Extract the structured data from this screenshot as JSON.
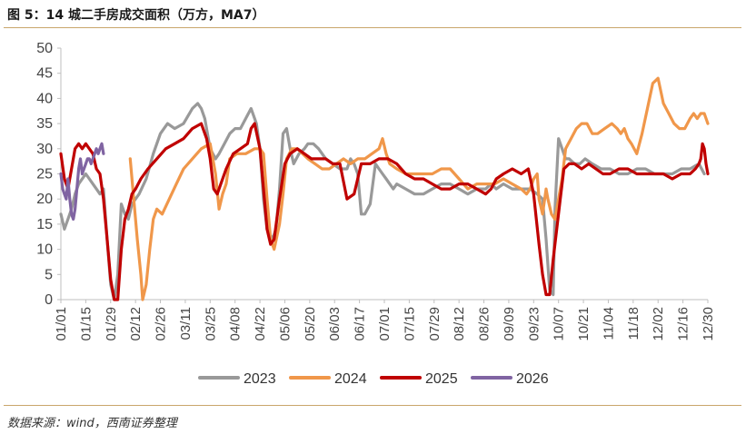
{
  "header": {
    "title": "图 5：14 城二手房成交面积（万方，MA7）"
  },
  "footer": {
    "source": "数据来源：wind，西南证券整理"
  },
  "colors": {
    "s2023": "#999999",
    "s2024": "#f0974a",
    "s2025": "#c00000",
    "s2026": "#8064a2",
    "rule": "#c9a66b"
  },
  "chart_data": {
    "type": "line",
    "title": "14 城二手房成交面积（万方，MA7）",
    "xlabel": "",
    "ylabel": "",
    "ylim": [
      0,
      50
    ],
    "yticks": [
      "0",
      "5",
      "10",
      "15",
      "20",
      "25",
      "30",
      "35",
      "40",
      "45",
      "50"
    ],
    "xlim": [
      1,
      365
    ],
    "x_tick_positions": [
      1,
      15,
      29,
      43,
      57,
      71,
      85,
      99,
      113,
      127,
      141,
      155,
      169,
      183,
      197,
      211,
      225,
      239,
      253,
      267,
      281,
      295,
      309,
      323,
      337,
      351,
      365
    ],
    "x_tick_labels": [
      "01/01",
      "01/15",
      "01/29",
      "02/12",
      "02/26",
      "03/11",
      "03/25",
      "04/08",
      "04/22",
      "05/06",
      "05/20",
      "06/03",
      "06/17",
      "07/01",
      "07/15",
      "07/29",
      "08/12",
      "08/26",
      "09/09",
      "09/23",
      "10/07",
      "10/21",
      "11/04",
      "11/18",
      "12/02",
      "12/16",
      "12/30"
    ],
    "legend_position": "bottom",
    "grid": false,
    "series": [
      {
        "name": "2023",
        "color": "#999999",
        "x": [
          1,
          3,
          5,
          7,
          9,
          11,
          13,
          15,
          17,
          19,
          21,
          23,
          25,
          27,
          29,
          31,
          33,
          35,
          37,
          39,
          41,
          45,
          49,
          53,
          57,
          61,
          65,
          70,
          75,
          78,
          80,
          82,
          85,
          88,
          90,
          93,
          96,
          99,
          102,
          105,
          108,
          111,
          113,
          115,
          117,
          120,
          122,
          124,
          126,
          128,
          130,
          132,
          135,
          138,
          140,
          143,
          146,
          150,
          154,
          158,
          162,
          164,
          166,
          168,
          170,
          172,
          175,
          178,
          180,
          182,
          184,
          186,
          188,
          190,
          195,
          200,
          205,
          210,
          215,
          220,
          225,
          230,
          235,
          240,
          243,
          246,
          250,
          255,
          260,
          265,
          269,
          272,
          274,
          276,
          278,
          279,
          281,
          283,
          285,
          287,
          290,
          293,
          296,
          300,
          305,
          310,
          315,
          320,
          325,
          330,
          335,
          340,
          345,
          350,
          355,
          360,
          363
        ],
        "y": [
          17,
          14,
          16,
          18,
          21,
          23,
          24,
          25,
          24,
          23,
          22,
          21,
          22,
          12,
          3,
          0,
          5,
          19,
          17,
          16,
          19,
          21,
          24,
          29,
          33,
          35,
          34,
          35,
          38,
          39,
          38,
          36,
          30,
          28,
          29,
          31,
          33,
          34,
          34,
          36,
          38,
          35,
          30,
          20,
          14,
          12,
          14,
          22,
          33,
          34,
          30,
          27,
          29,
          30,
          31,
          31,
          30,
          28,
          27,
          26,
          26,
          28,
          27,
          25,
          17,
          17,
          19,
          27,
          26,
          25,
          24,
          23,
          22,
          23,
          22,
          21,
          21,
          22,
          23,
          23,
          22,
          21,
          22,
          22,
          23,
          22,
          23,
          22,
          22,
          22,
          21,
          20,
          12,
          2,
          1,
          18,
          32,
          30,
          28,
          28,
          27,
          27,
          28,
          27,
          26,
          26,
          25,
          25,
          26,
          26,
          25,
          25,
          25,
          26,
          26,
          27,
          25
        ]
      },
      {
        "name": "2024",
        "color": "#f0974a",
        "x": [
          40,
          42,
          44,
          46,
          47,
          49,
          51,
          53,
          55,
          58,
          62,
          66,
          70,
          75,
          80,
          85,
          88,
          90,
          92,
          94,
          96,
          100,
          105,
          110,
          113,
          115,
          117,
          119,
          121,
          124,
          126,
          128,
          131,
          134,
          137,
          140,
          144,
          148,
          152,
          156,
          160,
          164,
          168,
          172,
          176,
          180,
          182,
          184,
          186,
          190,
          195,
          200,
          205,
          210,
          215,
          220,
          225,
          230,
          235,
          240,
          245,
          250,
          255,
          260,
          263,
          265,
          267,
          269,
          270,
          272,
          274,
          275,
          277,
          279,
          281,
          283,
          285,
          288,
          291,
          294,
          297,
          300,
          303,
          307,
          311,
          314,
          316,
          318,
          320,
          322,
          325,
          328,
          331,
          334,
          337,
          340,
          343,
          346,
          349,
          352,
          355,
          357,
          359,
          361,
          363,
          365
        ],
        "y": [
          28,
          20,
          12,
          5,
          0,
          3,
          10,
          16,
          18,
          17,
          20,
          23,
          26,
          28,
          30,
          31,
          25,
          18,
          21,
          23,
          28,
          29,
          29,
          30,
          30,
          29,
          20,
          12,
          10,
          15,
          21,
          28,
          30,
          30,
          29,
          28,
          27,
          26,
          26,
          27,
          28,
          27,
          28,
          28,
          29,
          30,
          32,
          29,
          27,
          26,
          25,
          25,
          25,
          25,
          26,
          26,
          24,
          22,
          23,
          23,
          23,
          24,
          23,
          22,
          21,
          22,
          24,
          25,
          20,
          17,
          22,
          20,
          17,
          16,
          20,
          24,
          30,
          32,
          34,
          35,
          35,
          33,
          33,
          34,
          35,
          34,
          33,
          34,
          32,
          31,
          29,
          33,
          38,
          43,
          44,
          39,
          37,
          35,
          34,
          34,
          36,
          37,
          36,
          37,
          37,
          35
        ]
      },
      {
        "name": "2025",
        "color": "#c00000",
        "x": [
          1,
          3,
          5,
          7,
          9,
          11,
          13,
          15,
          17,
          19,
          21,
          23,
          25,
          27,
          29,
          31,
          33,
          35,
          37,
          39,
          41,
          43,
          46,
          50,
          55,
          60,
          65,
          70,
          75,
          80,
          83,
          85,
          87,
          89,
          91,
          94,
          98,
          102,
          106,
          108,
          110,
          113,
          115,
          117,
          119,
          121,
          124,
          127,
          130,
          134,
          138,
          142,
          146,
          150,
          154,
          158,
          162,
          166,
          170,
          175,
          180,
          185,
          190,
          195,
          200,
          205,
          210,
          215,
          220,
          225,
          230,
          235,
          240,
          243,
          246,
          250,
          255,
          260,
          264,
          267,
          270,
          272,
          274,
          276,
          278,
          280,
          282,
          284,
          287,
          290,
          294,
          298,
          302,
          306,
          310,
          315,
          320,
          325,
          330,
          335,
          340,
          345,
          350,
          355,
          358,
          360,
          361,
          362,
          363,
          364,
          365
        ],
        "y": [
          29,
          24,
          22,
          26,
          30,
          31,
          30,
          31,
          30,
          29,
          26,
          25,
          20,
          12,
          4,
          0,
          0,
          10,
          16,
          18,
          21,
          22,
          24,
          26,
          28,
          30,
          31,
          32,
          34,
          35,
          32,
          28,
          22,
          21,
          23,
          26,
          29,
          30,
          31,
          34,
          35,
          30,
          22,
          14,
          11,
          12,
          20,
          27,
          29,
          30,
          29,
          28,
          28,
          28,
          27,
          27,
          20,
          21,
          27,
          27,
          28,
          28,
          27,
          25,
          24,
          24,
          23,
          22,
          22,
          23,
          23,
          22,
          21,
          22,
          24,
          25,
          26,
          25,
          26,
          21,
          11,
          5,
          1,
          1,
          8,
          14,
          20,
          26,
          27,
          27,
          26,
          27,
          26,
          25,
          25,
          26,
          26,
          25,
          25,
          25,
          25,
          24,
          25,
          25,
          26,
          27,
          28,
          31,
          30,
          27,
          25
        ]
      },
      {
        "name": "2026",
        "color": "#8064a2",
        "x": [
          1,
          2,
          3,
          4,
          5,
          6,
          7,
          8,
          9,
          10,
          11,
          12,
          13,
          14,
          15,
          16,
          17,
          18,
          19,
          20,
          21,
          22,
          23,
          24,
          25
        ],
        "y": [
          25,
          22,
          21,
          20,
          24,
          20,
          17,
          16,
          18,
          22,
          26,
          28,
          25,
          26,
          27,
          28,
          28,
          27,
          28,
          29,
          30,
          29,
          30,
          31,
          29
        ]
      }
    ]
  }
}
